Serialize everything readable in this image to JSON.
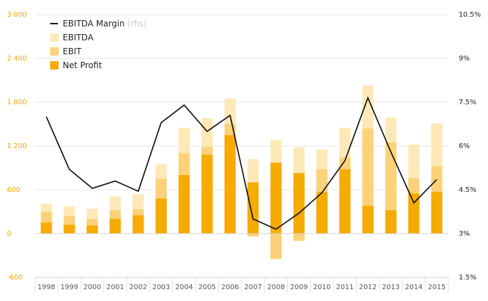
{
  "chart_data": {
    "type": "bar",
    "categories": [
      "1998",
      "1999",
      "2000",
      "2001",
      "2002",
      "2003",
      "2004",
      "2005",
      "2006",
      "2007",
      "2008",
      "2009",
      "2010",
      "2011",
      "2012",
      "2013",
      "2014",
      "2015"
    ],
    "series": [
      {
        "name": "EBITDA",
        "kind": "bar",
        "axis": "left",
        "color": "#fde9b8",
        "values": [
          410,
          370,
          340,
          510,
          540,
          950,
          1450,
          1580,
          1850,
          1020,
          1280,
          1180,
          1150,
          1450,
          2030,
          1590,
          1220,
          1510
        ]
      },
      {
        "name": "EBIT",
        "kind": "bar",
        "axis": "left",
        "color": "#fbd27a",
        "values": [
          300,
          240,
          200,
          320,
          330,
          750,
          1100,
          1190,
          1500,
          -40,
          -350,
          -100,
          880,
          1040,
          1440,
          1250,
          760,
          920
        ]
      },
      {
        "name": "Net Profit",
        "kind": "bar",
        "axis": "left",
        "color": "#f5ab00",
        "values": [
          150,
          120,
          110,
          200,
          250,
          480,
          800,
          1080,
          1350,
          700,
          970,
          830,
          570,
          880,
          380,
          320,
          550,
          570
        ]
      },
      {
        "name": "EBITDA Margin",
        "kind": "line",
        "axis": "right",
        "color": "#111111",
        "values": [
          7.0,
          5.2,
          4.55,
          4.8,
          4.45,
          6.8,
          7.4,
          6.5,
          7.05,
          3.5,
          3.15,
          3.7,
          4.4,
          5.5,
          7.65,
          5.8,
          4.05,
          4.85
        ]
      }
    ],
    "legend": [
      {
        "label": "EBITDA Margin",
        "note": "(rhs)",
        "marker": "line",
        "color": "#111111"
      },
      {
        "label": "EBITDA",
        "marker": "square",
        "color": "#fde9b8"
      },
      {
        "label": "EBIT",
        "marker": "square",
        "color": "#fbd27a"
      },
      {
        "label": "Net Profit",
        "marker": "square",
        "color": "#f5ab00"
      }
    ],
    "legend_placement": "top-left",
    "y_left": {
      "range": [
        -600,
        3000
      ],
      "ticks": [
        -600,
        0,
        600,
        1200,
        1800,
        2400,
        3000
      ],
      "tick_labels": [
        "-600",
        "0",
        "600",
        "1 200",
        "1 800",
        "2 400",
        "3 000"
      ],
      "color": "#f2a900"
    },
    "y_right": {
      "range": [
        1.5,
        10.5
      ],
      "ticks": [
        1.5,
        3,
        4.5,
        6,
        7.5,
        9,
        10.5
      ],
      "tick_labels": [
        "1.5%",
        "3%",
        "4.5%",
        "6%",
        "7.5%",
        "9%",
        "10.5%"
      ]
    },
    "grid": true,
    "title": "",
    "xlabel": "",
    "ylabel": ""
  }
}
